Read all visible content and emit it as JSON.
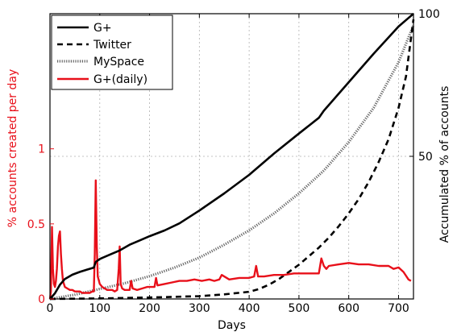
{
  "chart_data": {
    "type": "line",
    "xlabel": "Days",
    "ylabel_left": "% accounts created per day",
    "ylabel_right": "Accumulated % of accounts",
    "xlim": [
      0,
      730
    ],
    "ylim_left": [
      0,
      1.9
    ],
    "ylim_right": [
      0,
      100
    ],
    "xticks": [
      0,
      100,
      200,
      300,
      400,
      500,
      600,
      700
    ],
    "yticks_left": [
      0,
      0.5,
      1
    ],
    "yticks_right": [
      50,
      100
    ],
    "grid": true,
    "legend_position": "top-left",
    "colors": {
      "left_axis": "#e8101a",
      "daily": "#e8101a",
      "cumulative": "#000000",
      "grid": "#b0b0b0"
    },
    "series": [
      {
        "name": "G+",
        "axis": "right",
        "style": "solid",
        "x": [
          0,
          10,
          20,
          30,
          45,
          60,
          75,
          88,
          92,
          100,
          120,
          140,
          160,
          180,
          200,
          230,
          260,
          300,
          350,
          400,
          450,
          500,
          540,
          550,
          600,
          650,
          700,
          720,
          730
        ],
        "y": [
          0,
          2,
          5,
          7,
          8.5,
          9.5,
          10.3,
          11,
          13,
          14,
          15.5,
          17,
          19,
          20.5,
          22,
          24,
          26.5,
          31,
          37,
          43.5,
          51,
          58,
          63.5,
          66,
          76,
          86,
          95.5,
          98.5,
          100
        ]
      },
      {
        "name": "Twitter",
        "axis": "right",
        "style": "dashed",
        "x": [
          0,
          100,
          200,
          300,
          350,
          400,
          420,
          440,
          460,
          480,
          500,
          520,
          540,
          560,
          580,
          600,
          620,
          640,
          660,
          680,
          700,
          715,
          730
        ],
        "y": [
          0,
          0.2,
          0.5,
          1,
          1.6,
          2.5,
          3.5,
          5,
          7,
          9.5,
          12,
          15,
          18,
          21.5,
          25.5,
          30,
          35,
          41,
          48,
          56,
          67,
          78,
          98
        ]
      },
      {
        "name": "MySpace",
        "axis": "right",
        "style": "dotted",
        "x": [
          0,
          50,
          100,
          150,
          200,
          250,
          300,
          350,
          400,
          450,
          500,
          550,
          600,
          650,
          700,
          730
        ],
        "y": [
          0,
          1.5,
          3.5,
          5.5,
          8,
          11,
          14.5,
          19,
          24,
          30,
          37,
          45,
          55,
          67,
          83,
          96
        ]
      },
      {
        "name": "G+(daily)",
        "axis": "left",
        "style": "solid",
        "x": [
          0,
          2,
          4,
          6,
          8,
          10,
          12,
          14,
          16,
          18,
          20,
          22,
          24,
          26,
          28,
          30,
          35,
          40,
          45,
          50,
          55,
          60,
          65,
          70,
          75,
          80,
          85,
          88,
          90,
          92,
          94,
          96,
          100,
          105,
          110,
          115,
          120,
          125,
          130,
          135,
          138,
          140,
          142,
          145,
          150,
          160,
          163,
          166,
          175,
          185,
          195,
          205,
          210,
          213,
          216,
          230,
          245,
          260,
          275,
          290,
          305,
          320,
          330,
          340,
          345,
          360,
          380,
          400,
          410,
          414,
          418,
          430,
          450,
          470,
          490,
          510,
          530,
          540,
          545,
          550,
          555,
          560,
          580,
          600,
          620,
          640,
          660,
          680,
          690,
          700,
          710,
          720,
          725
        ],
        "y": [
          0,
          0.05,
          0.48,
          0.2,
          0.1,
          0.08,
          0.12,
          0.2,
          0.35,
          0.42,
          0.45,
          0.3,
          0.2,
          0.12,
          0.1,
          0.08,
          0.07,
          0.06,
          0.06,
          0.05,
          0.05,
          0.05,
          0.04,
          0.04,
          0.04,
          0.04,
          0.05,
          0.05,
          0.3,
          0.79,
          0.35,
          0.15,
          0.1,
          0.08,
          0.07,
          0.06,
          0.06,
          0.06,
          0.05,
          0.06,
          0.2,
          0.35,
          0.1,
          0.07,
          0.06,
          0.06,
          0.12,
          0.07,
          0.06,
          0.07,
          0.08,
          0.08,
          0.08,
          0.14,
          0.09,
          0.1,
          0.11,
          0.12,
          0.12,
          0.13,
          0.12,
          0.13,
          0.12,
          0.13,
          0.16,
          0.13,
          0.14,
          0.14,
          0.15,
          0.22,
          0.15,
          0.15,
          0.16,
          0.16,
          0.17,
          0.17,
          0.17,
          0.17,
          0.27,
          0.22,
          0.2,
          0.22,
          0.23,
          0.24,
          0.23,
          0.23,
          0.22,
          0.22,
          0.2,
          0.21,
          0.18,
          0.13,
          0.12
        ]
      }
    ]
  }
}
